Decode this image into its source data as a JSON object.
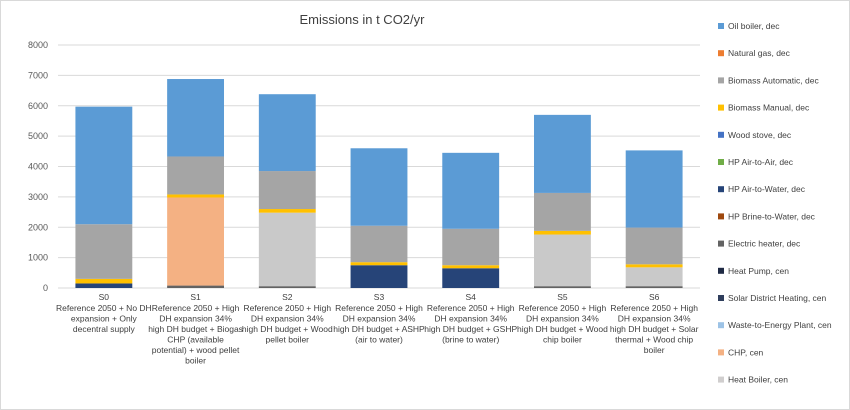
{
  "chart_data": {
    "type": "bar",
    "stacked": true,
    "title": "Emissions in t CO2/yr",
    "xlabel": "",
    "ylabel": "",
    "ylim": [
      0,
      8000
    ],
    "yticks": [
      0,
      1000,
      2000,
      3000,
      4000,
      5000,
      6000,
      7000,
      8000
    ],
    "grid": true,
    "legend_position": "right",
    "categories": [
      {
        "code": "S0",
        "lines": [
          "Reference 2050 + No DH",
          "expansion + Only",
          "decentral supply"
        ]
      },
      {
        "code": "S1",
        "lines": [
          "Reference 2050 + High",
          "DH expansion 34%",
          "high DH budget + Biogas",
          "CHP (available",
          "potential) + wood pellet",
          "boiler"
        ]
      },
      {
        "code": "S2",
        "lines": [
          "Reference 2050 + High",
          "DH expansion 34%",
          "high DH budget + Wood",
          "pellet boiler"
        ]
      },
      {
        "code": "S3",
        "lines": [
          "Reference 2050 + High",
          "DH expansion 34%",
          "high DH budget + ASHP",
          "(air to water)"
        ]
      },
      {
        "code": "S4",
        "lines": [
          "Reference 2050 + High",
          "DH expansion 34%",
          "high DH budget + GSHP",
          "(brine to water)"
        ]
      },
      {
        "code": "S5",
        "lines": [
          "Reference 2050 + High",
          "DH expansion 34%",
          "high DH budget + Wood",
          "chip boiler"
        ]
      },
      {
        "code": "S6",
        "lines": [
          "Reference 2050 + High",
          "DH expansion 34%",
          "high DH budget + Solar",
          "thermal + Wood chip",
          "boiler"
        ]
      }
    ],
    "series": [
      {
        "name": "Oil boiler, dec",
        "color": "#5B9BD5",
        "values": [
          0,
          0,
          0,
          0,
          0,
          0,
          0
        ]
      },
      {
        "name": "Natural gas, dec",
        "color": "#ED7D31",
        "values": [
          0,
          0,
          0,
          0,
          0,
          0,
          0
        ]
      },
      {
        "name": "Biomass Automatic, dec",
        "color": "#A5A5A5",
        "values": [
          0,
          0,
          0,
          0,
          0,
          0,
          0
        ]
      },
      {
        "name": "Biomass Manual, dec",
        "color": "#FFC000",
        "values": [
          0,
          0,
          0,
          0,
          0,
          0,
          0
        ]
      },
      {
        "name": "Wood stove, dec",
        "color": "#4472C4",
        "values": [
          0,
          0,
          0,
          0,
          0,
          0,
          0
        ]
      },
      {
        "name": "HP Air-to-Air, dec",
        "color": "#70AD47",
        "values": [
          0,
          0,
          0,
          0,
          0,
          0,
          0
        ]
      },
      {
        "name": "HP Air-to-Water, dec",
        "color": "#264478",
        "values": [
          150,
          0,
          0,
          750,
          650,
          0,
          0
        ]
      },
      {
        "name": "HP Brine-to-Water, dec",
        "color": "#9E480E",
        "values": [
          0,
          0,
          0,
          0,
          0,
          0,
          0
        ]
      },
      {
        "name": "Electric heater, dec",
        "color": "#636363",
        "values": [
          0,
          80,
          60,
          0,
          0,
          60,
          60
        ]
      },
      {
        "name": "Heat Pump, cen",
        "color": "#997300",
        "values": [
          0,
          0,
          0,
          0,
          0,
          0,
          0
        ]
      },
      {
        "name": "Solar District Heating, cen",
        "color": "#255E91",
        "values": [
          0,
          0,
          0,
          0,
          0,
          0,
          0
        ]
      },
      {
        "name": "Waste-to-Energy Plant, cen",
        "color": "#43682B",
        "values": [
          0,
          0,
          0,
          0,
          0,
          0,
          0
        ]
      },
      {
        "name": "CHP, cen",
        "color": "#F4B183",
        "values": [
          0,
          2900,
          0,
          0,
          0,
          0,
          0
        ]
      },
      {
        "name": "Heat Boiler, cen",
        "color": "#C9C9C9",
        "values": [
          0,
          0,
          2420,
          0,
          0,
          1700,
          620
        ]
      },
      {
        "name": "Biomass Manual, dec (upper)",
        "color": "#FFC000",
        "values": [
          150,
          100,
          120,
          100,
          100,
          120,
          100
        ]
      },
      {
        "name": "Biomass Automatic, dec (upper)",
        "color": "#A5A5A5",
        "values": [
          1800,
          1250,
          1250,
          1200,
          1200,
          1250,
          1210
        ]
      },
      {
        "name": "Oil boiler, dec (upper)",
        "color": "#5B9BD5",
        "values": [
          3870,
          2550,
          2530,
          2550,
          2500,
          2570,
          2540
        ]
      }
    ],
    "legend_entries": [
      {
        "name": "Oil boiler, dec",
        "color": "#5B9BD5"
      },
      {
        "name": "Natural gas, dec",
        "color": "#ED7D31"
      },
      {
        "name": "Biomass Automatic, dec",
        "color": "#A5A5A5"
      },
      {
        "name": "Biomass Manual, dec",
        "color": "#FFC000"
      },
      {
        "name": "Wood stove, dec",
        "color": "#4472C4"
      },
      {
        "name": "HP Air-to-Air, dec",
        "color": "#70AD47"
      },
      {
        "name": "HP Air-to-Water, dec",
        "color": "#264478"
      },
      {
        "name": "HP Brine-to-Water, dec",
        "color": "#9E480E"
      },
      {
        "name": "Electric heater, dec",
        "color": "#636363"
      },
      {
        "name": "Heat Pump, cen",
        "color": "#1F2A44"
      },
      {
        "name": "Solar District Heating, cen",
        "color": "#2F3E5C"
      },
      {
        "name": "Waste-to-Energy Plant, cen",
        "color": "#9DC3E6"
      },
      {
        "name": "CHP, cen",
        "color": "#F4B183"
      },
      {
        "name": "Heat Boiler, cen",
        "color": "#D0CECE"
      }
    ]
  }
}
